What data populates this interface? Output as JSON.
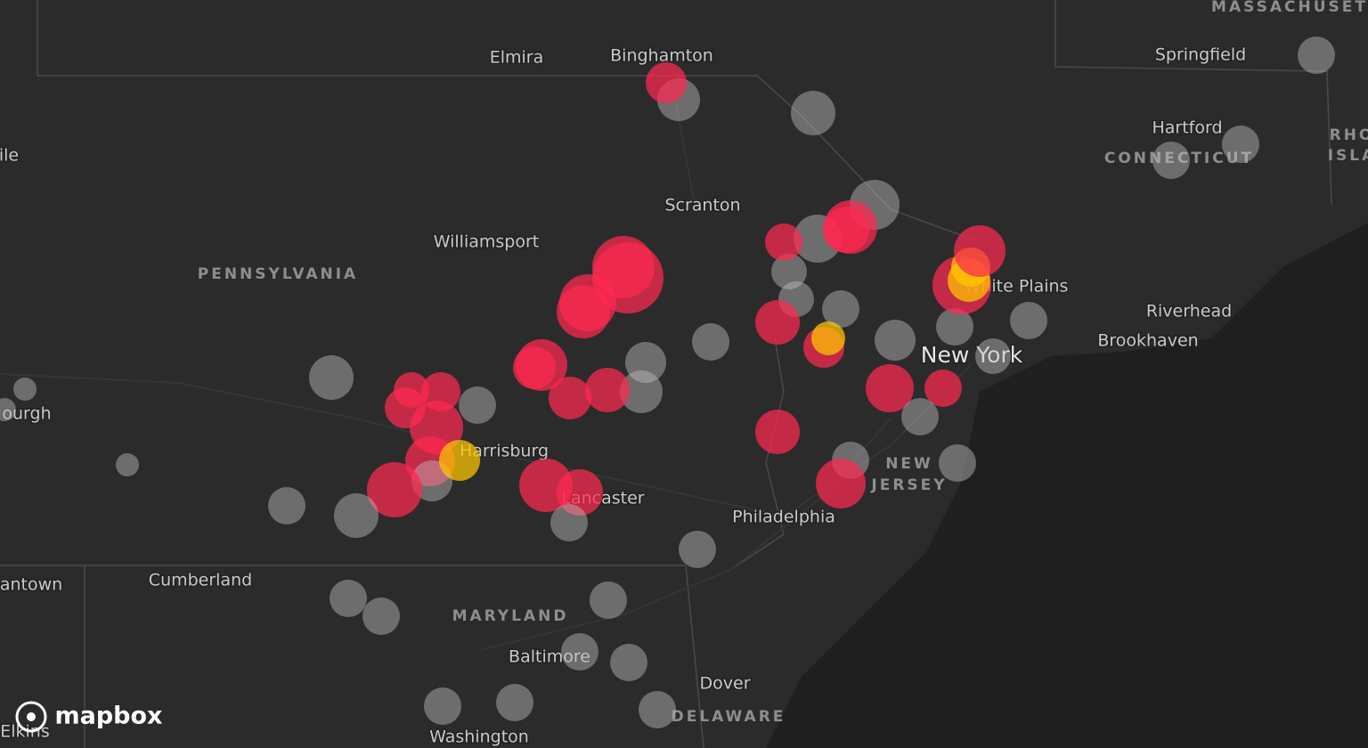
{
  "places": [
    "Elmira",
    "Binghamton",
    "Springfield",
    "Hartford",
    "Scranton",
    "Williamsport",
    "White Plains",
    "Riverhead",
    "Brookhaven",
    "Harrisburg",
    "Lancaster",
    "Philadelphia",
    "Cumberland",
    "Baltimore",
    "Dover",
    "Washington",
    "ourgh",
    "ile",
    "antown",
    "Elkins"
  ],
  "major_place": "New York",
  "regions": [
    "MASSACHUSET",
    "CONNECTICUT",
    "PENNSYLVANIA",
    "NEW",
    "JERSEY",
    "MARYLAND",
    "DELAWARE",
    "RHO",
    "ISLA"
  ],
  "logo": "mapbox"
}
